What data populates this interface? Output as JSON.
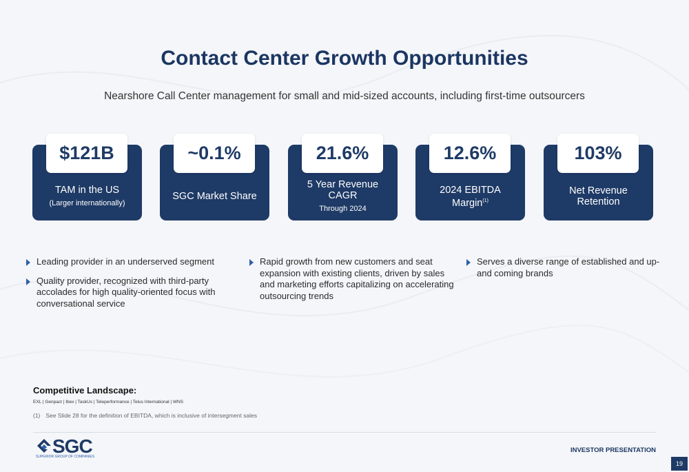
{
  "title": "Contact Center Growth Opportunities",
  "subtitle": "Nearshore Call Center management for small and mid-sized accounts, including first-time outsourcers",
  "kpis": [
    {
      "value": "$121B",
      "label": "TAM in the US",
      "sub": "(Larger internationally)"
    },
    {
      "value": "~0.1%",
      "label": "SGC Market Share",
      "sub": ""
    },
    {
      "value": "21.6%",
      "label": "5 Year Revenue CAGR",
      "sub": "Through 2024"
    },
    {
      "value": "12.6%",
      "label": "2024 EBITDA Margin",
      "sup": "(1)",
      "sub": ""
    },
    {
      "value": "103%",
      "label": "Net Revenue Retention",
      "sub": ""
    }
  ],
  "bullets": {
    "col1": [
      "Leading provider in an underserved segment",
      "Quality provider, recognized with third-party accolades for high quality-oriented focus with conversational service"
    ],
    "col2": [
      "Rapid growth from new customers and seat expansion with existing clients, driven by sales and marketing efforts capitalizing on accelerating outsourcing trends"
    ],
    "col3": [
      "Serves a diverse range of established and up-and coming brands"
    ]
  },
  "competitive": {
    "heading": "Competitive Landscape:",
    "list": "EXL | Genpact | Ibex | TaskUs | Teleperformance | Telus International | WNS"
  },
  "footnote": {
    "number": "(1)",
    "text": "See Slide 28 for the definition of EBITDA, which is inclusive of intersegment sales"
  },
  "footer": {
    "logo_text": "SGC",
    "logo_tagline": "SUPERIOR GROUP OF COMPANIES",
    "label": "INVESTOR PRESENTATION",
    "page": "19"
  },
  "colors": {
    "navy": "#1e3a66",
    "title": "#1c3662",
    "bullet": "#2f5fa8"
  }
}
